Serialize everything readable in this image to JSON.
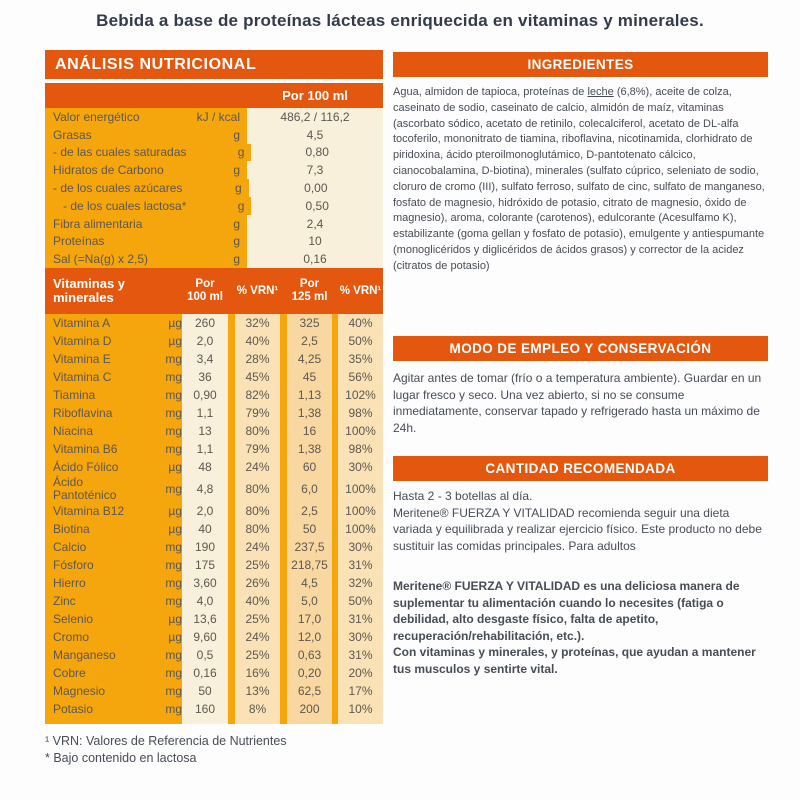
{
  "page_title": "Bebida a base de proteínas lácteas enriquecida en vitaminas y minerales.",
  "colors": {
    "accent_orange": "#e4570e",
    "panel_yellow": "#f6a60d",
    "col_cream": "#f8f0da",
    "col_beige": "#fae2b6",
    "col_peach": "#f8d8a0"
  },
  "nutrition": {
    "header": "ANÁLISIS NUTRICIONAL",
    "per_100_header": "Por 100 ml",
    "rows": [
      {
        "label": "Valor energético",
        "unit": "kJ / kcal",
        "value": "486,2 / 116,2"
      },
      {
        "label": "Grasas",
        "unit": "g",
        "value": "4,5"
      },
      {
        "label": "- de las cuales saturadas",
        "unit": "g",
        "value": "0,80"
      },
      {
        "label": "Hidratos de Carbono",
        "unit": "g",
        "value": "7,3"
      },
      {
        "label": "- de los cuales azúcares",
        "unit": "g",
        "value": "0,00"
      },
      {
        "label": "   - de los cuales lactosa*",
        "unit": "g",
        "value": "0,50"
      },
      {
        "label": "Fibra alimentaria",
        "unit": "g",
        "value": "2,4"
      },
      {
        "label": "Proteínas",
        "unit": "g",
        "value": "10"
      },
      {
        "label": "Sal (=Na(g) x 2,5)",
        "unit": "g",
        "value": "0,16"
      }
    ],
    "vitamins_header": {
      "title": "Vitaminas y minerales",
      "col1": "Por\n100 ml",
      "col2": "% VRN¹",
      "col3": "Por\n125 ml",
      "col4": "% VRN¹"
    },
    "vitamins": [
      {
        "label": "Vitamina A",
        "unit": "µg",
        "v100": "260",
        "vrn100": "32%",
        "v125": "325",
        "vrn125": "40%"
      },
      {
        "label": "Vitamina D",
        "unit": "µg",
        "v100": "2,0",
        "vrn100": "40%",
        "v125": "2,5",
        "vrn125": "50%"
      },
      {
        "label": "Vitamina E",
        "unit": "mg",
        "v100": "3,4",
        "vrn100": "28%",
        "v125": "4,25",
        "vrn125": "35%"
      },
      {
        "label": "Vitamina C",
        "unit": "mg",
        "v100": "36",
        "vrn100": "45%",
        "v125": "45",
        "vrn125": "56%"
      },
      {
        "label": "Tiamina",
        "unit": "mg",
        "v100": "0,90",
        "vrn100": "82%",
        "v125": "1,13",
        "vrn125": "102%"
      },
      {
        "label": "Riboflavina",
        "unit": "mg",
        "v100": "1,1",
        "vrn100": "79%",
        "v125": "1,38",
        "vrn125": "98%"
      },
      {
        "label": "Niacina",
        "unit": "mg",
        "v100": "13",
        "vrn100": "80%",
        "v125": "16",
        "vrn125": "100%"
      },
      {
        "label": "Vitamina B6",
        "unit": "mg",
        "v100": "1,1",
        "vrn100": "79%",
        "v125": "1,38",
        "vrn125": "98%"
      },
      {
        "label": "Ácido Fólico",
        "unit": "µg",
        "v100": "48",
        "vrn100": "24%",
        "v125": "60",
        "vrn125": "30%"
      },
      {
        "label": "Ácido Pantoténico",
        "unit": "mg",
        "v100": "4,8",
        "vrn100": "80%",
        "v125": "6,0",
        "vrn125": "100%"
      },
      {
        "label": "Vitamina B12",
        "unit": "µg",
        "v100": "2,0",
        "vrn100": "80%",
        "v125": "2,5",
        "vrn125": "100%"
      },
      {
        "label": "Biotina",
        "unit": "µg",
        "v100": "40",
        "vrn100": "80%",
        "v125": "50",
        "vrn125": "100%"
      },
      {
        "label": "Calcio",
        "unit": "mg",
        "v100": "190",
        "vrn100": "24%",
        "v125": "237,5",
        "vrn125": "30%"
      },
      {
        "label": "Fósforo",
        "unit": "mg",
        "v100": "175",
        "vrn100": "25%",
        "v125": "218,75",
        "vrn125": "31%"
      },
      {
        "label": "Hierro",
        "unit": "mg",
        "v100": "3,60",
        "vrn100": "26%",
        "v125": "4,5",
        "vrn125": "32%"
      },
      {
        "label": "Zinc",
        "unit": "mg",
        "v100": "4,0",
        "vrn100": "40%",
        "v125": "5,0",
        "vrn125": "50%"
      },
      {
        "label": "Selenio",
        "unit": "µg",
        "v100": "13,6",
        "vrn100": "25%",
        "v125": "17,0",
        "vrn125": "31%"
      },
      {
        "label": "Cromo",
        "unit": "µg",
        "v100": "9,60",
        "vrn100": "24%",
        "v125": "12,0",
        "vrn125": "30%"
      },
      {
        "label": "Manganeso",
        "unit": "mg",
        "v100": "0,5",
        "vrn100": "25%",
        "v125": "0,63",
        "vrn125": "31%"
      },
      {
        "label": "Cobre",
        "unit": "mg",
        "v100": "0,16",
        "vrn100": "16%",
        "v125": "0,20",
        "vrn125": "20%"
      },
      {
        "label": "Magnesio",
        "unit": "mg",
        "v100": "50",
        "vrn100": "13%",
        "v125": "62,5",
        "vrn125": "17%"
      },
      {
        "label": "Potasio",
        "unit": "mg",
        "v100": "160",
        "vrn100": "8%",
        "v125": "200",
        "vrn125": "10%"
      }
    ],
    "footnote_vrn": "¹ VRN: Valores de Referencia de Nutrientes",
    "footnote_lactose": "* Bajo contenido en lactosa"
  },
  "ingredients": {
    "header": "INGREDIENTES",
    "text_before": "Agua, almidon de tapioca, proteínas de ",
    "allergen": "leche",
    "text_after": " (6,8%), aceite de colza, caseinato de sodio, caseinato de calcio, almidón de maíz, vitaminas (ascorbato sódico, acetato de retinilo, colecalciferol, acetato de DL-alfa tocoferilo, mononitrato de tiamina, riboflavina, nicotinamida, clorhidrato de piridoxina, ácido pteroilmonoglutámico, D-pantotenato cálcico, cianocobalamina, D-biotina), minerales (sulfato cúprico, seleniato de sodio, cloruro de cromo (III), sulfato ferroso, sulfato de cinc, sulfato de manganeso, fosfato de magnesio, hidróxido de potasio, citrato de magnesio, óxido de magnesio), aroma, colorante (carotenos), edulcorante (Acesulfamo K), estabilizante (goma gellan y fosfato de potasio), emulgente y antiespumante (monoglicéridos y diglicéridos de ácidos grasos) y corrector de la acidez (citratos de potasio)"
  },
  "usage": {
    "header": "MODO DE EMPLEO Y CONSERVACIÓN",
    "text": "Agitar antes de tomar (frío o a temperatura ambiente). Guardar en un lugar fresco y seco. Una vez abierto, si no se consume inmediatamente, conservar tapado y refrigerado hasta un máximo de 24h."
  },
  "recommended": {
    "header": "CANTIDAD RECOMENDADA",
    "line1": "Hasta 2 - 3 botellas al día.",
    "line2": "Meritene® FUERZA Y VITALIDAD recomienda seguir una dieta variada y equilibrada y realizar ejercicio físico. Este producto no debe sustituir las comidas principales. Para adultos",
    "bold1": "Meritene® FUERZA Y VITALIDAD es una deliciosa manera de suplementar tu alimentación cuando lo necesites (fatiga o debilidad, alto desgaste físico, falta de apetito, recuperación/rehabilitación, etc.).",
    "bold2": "Con vitaminas y minerales, y proteínas, que ayudan a mantener tus musculos y sentirte vital."
  }
}
